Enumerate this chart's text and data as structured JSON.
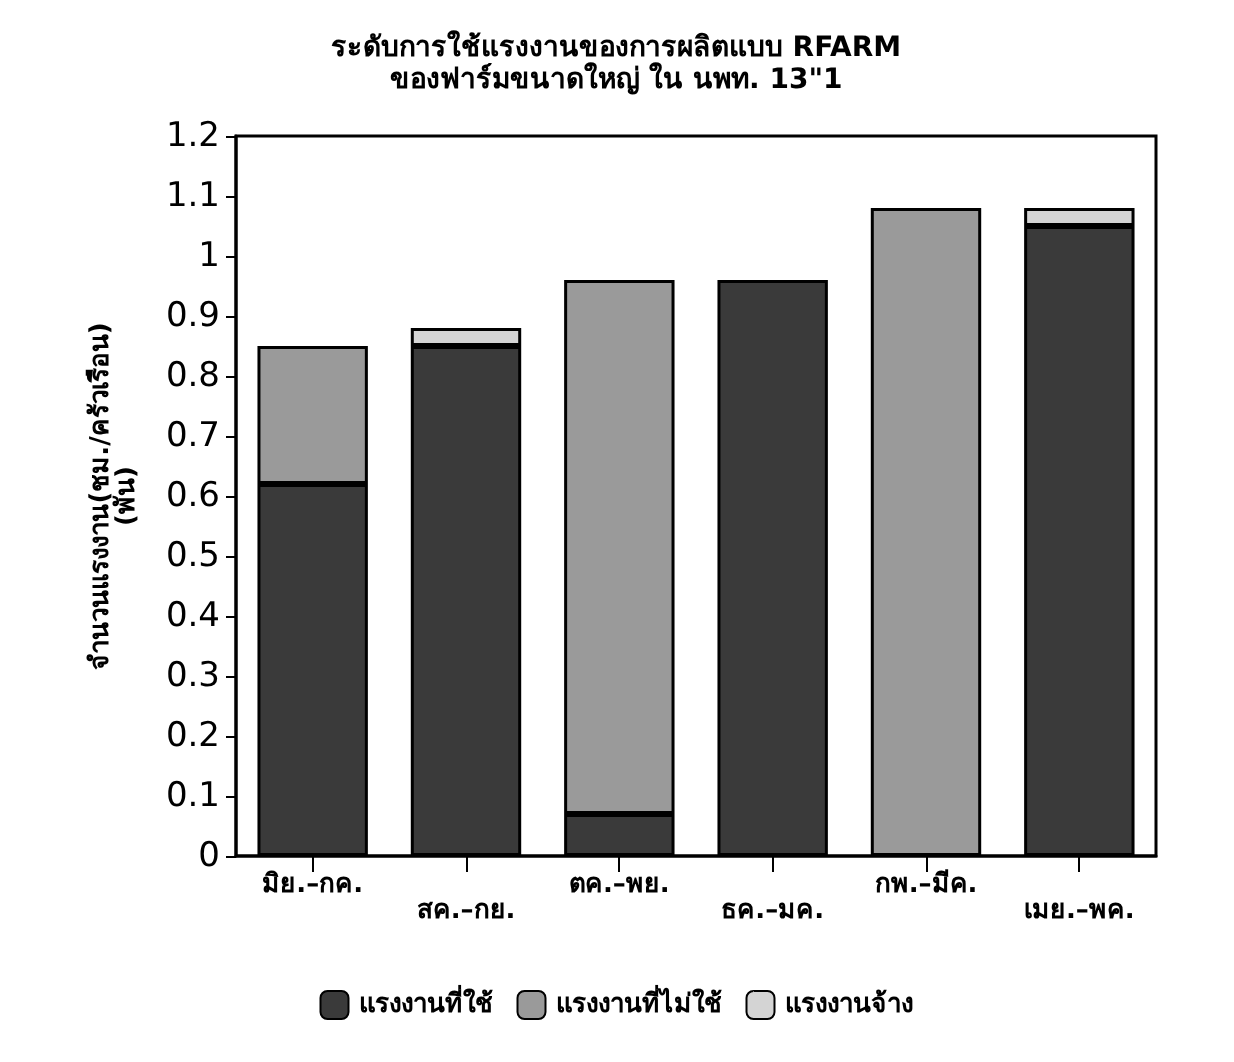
{
  "chart_data": {
    "type": "bar",
    "title": "ระดับการใช้แรงงานของการผลิตแบบ RFARM",
    "subtitle": "ของฟาร์มขนาดใหญ่ ใน นพท. 13\"1",
    "ylabel": "จำนวนแรงงาน(ชม./ครัวเรือน)\n(พัน)",
    "categories": [
      "มิย.–กค.",
      "สค.–กย.",
      "ตค.–พย.",
      "ธค.–มค.",
      "กพ.–มีค.",
      "เมย.–พค."
    ],
    "stacked": true,
    "series": [
      {
        "name": "แรงงานที่ใช้",
        "color": "#3a3a3a",
        "values": [
          0.62,
          0.85,
          0.07,
          0.96,
          null,
          1.05
        ]
      },
      {
        "name": "แรงงานที่ไม่ใช้",
        "color": "#9a9a9a",
        "values": [
          0.23,
          null,
          0.89,
          null,
          1.08,
          null
        ]
      },
      {
        "name": "แรงงานจ้าง",
        "color": "#d4d4d4",
        "values": [
          null,
          0.03,
          null,
          null,
          null,
          0.03
        ]
      }
    ],
    "ylim": [
      0,
      1.2
    ],
    "yticks": [
      0,
      0.1,
      0.2,
      0.3,
      0.4,
      0.5,
      0.6,
      0.7,
      0.8,
      0.9,
      1,
      1.1,
      1.2
    ],
    "grid": false,
    "legend": "bottom"
  }
}
